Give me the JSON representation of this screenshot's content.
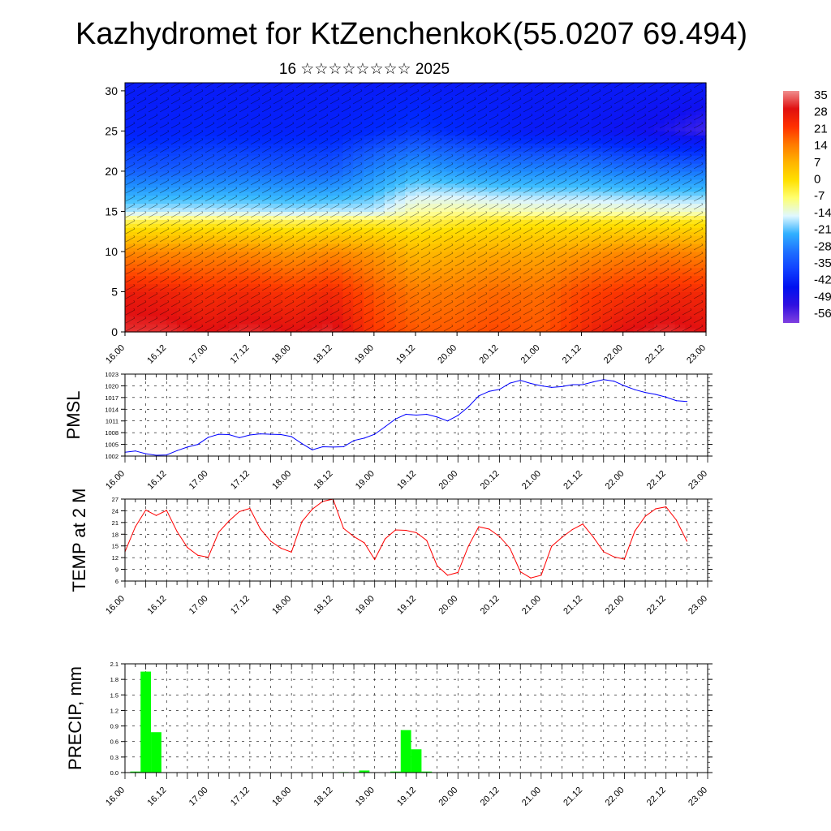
{
  "title": "Kazhydromet for KtZenchenkoK(55.0207 69.494)",
  "subtitle": "16 ☆☆☆☆☆☆☆☆ 2025",
  "time_labels": [
    "16.00",
    "16.12",
    "17.00",
    "17.12",
    "18.00",
    "18.12",
    "19.00",
    "19.12",
    "20.00",
    "20.12",
    "21.00",
    "21.12",
    "22.00",
    "22.12",
    "23.00"
  ],
  "chart_data": [
    {
      "type": "heatmap",
      "title": "Kazhydromet for KtZenchenkoK(55.0207 69.494)",
      "subtitle": "16 ☆☆☆☆☆☆☆☆ 2025",
      "x_ticks": [
        "16.00",
        "16.12",
        "17.00",
        "17.12",
        "18.00",
        "18.12",
        "19.00",
        "19.12",
        "20.00",
        "20.12",
        "21.00",
        "21.12",
        "22.00",
        "22.12",
        "23.00"
      ],
      "y_ticks": [
        0,
        5,
        10,
        15,
        20,
        25,
        30
      ],
      "ylim": [
        0,
        31
      ],
      "xlim": [
        0,
        14
      ],
      "colorbar_labels": [
        "35",
        "28",
        "21",
        "14",
        "7",
        "0",
        "-7",
        "-14",
        "-21",
        "-28",
        "-35",
        "-42",
        "-49",
        "-56"
      ],
      "colorbar_colors": [
        "#f08e8e",
        "#e01010",
        "#ff3000",
        "#ff7a00",
        "#ffb400",
        "#ffe000",
        "#ffff70",
        "#e0f8ff",
        "#30b0ff",
        "#1e70ff",
        "#1040ff",
        "#0010f0",
        "#3010e0",
        "#8040e0"
      ],
      "temperature_profiles": [
        {
          "x": 0,
          "levels": [
            [
              0,
              30
            ],
            [
              5,
              26
            ],
            [
              10,
              12
            ],
            [
              14,
              -5
            ],
            [
              15,
              -16
            ],
            [
              20,
              -34
            ],
            [
              25,
              -44
            ],
            [
              31,
              -46
            ]
          ]
        },
        {
          "x": 1,
          "levels": [
            [
              0,
              30
            ],
            [
              5,
              25
            ],
            [
              10,
              12
            ],
            [
              14,
              -4
            ],
            [
              15,
              -15
            ],
            [
              20,
              -34
            ],
            [
              25,
              -44
            ],
            [
              31,
              -46
            ]
          ]
        },
        {
          "x": 2,
          "levels": [
            [
              0,
              28
            ],
            [
              5,
              23
            ],
            [
              10,
              12
            ],
            [
              14,
              -4
            ],
            [
              15,
              -15
            ],
            [
              20,
              -33
            ],
            [
              25,
              -43
            ],
            [
              31,
              -46
            ]
          ]
        },
        {
          "x": 3,
          "levels": [
            [
              0,
              30
            ],
            [
              5,
              24
            ],
            [
              10,
              12
            ],
            [
              14,
              -4
            ],
            [
              15,
              -15
            ],
            [
              20,
              -33
            ],
            [
              25,
              -44
            ],
            [
              31,
              -46
            ]
          ]
        },
        {
          "x": 4,
          "levels": [
            [
              0,
              28
            ],
            [
              5,
              22
            ],
            [
              10,
              10
            ],
            [
              14,
              -5
            ],
            [
              15,
              -16
            ],
            [
              20,
              -34
            ],
            [
              25,
              -44
            ],
            [
              31,
              -46
            ]
          ]
        },
        {
          "x": 5,
          "levels": [
            [
              0,
              30
            ],
            [
              5,
              24
            ],
            [
              10,
              12
            ],
            [
              14,
              -4
            ],
            [
              15,
              -15
            ],
            [
              20,
              -34
            ],
            [
              25,
              -44
            ],
            [
              31,
              -46
            ]
          ]
        },
        {
          "x": 6,
          "levels": [
            [
              0,
              22
            ],
            [
              5,
              18
            ],
            [
              10,
              10
            ],
            [
              14,
              -4
            ],
            [
              15,
              -15
            ],
            [
              20,
              -28
            ],
            [
              25,
              -42
            ],
            [
              31,
              -46
            ]
          ]
        },
        {
          "x": 7,
          "levels": [
            [
              0,
              18
            ],
            [
              5,
              14
            ],
            [
              10,
              6
            ],
            [
              14,
              -4
            ],
            [
              15,
              -8
            ],
            [
              20,
              -24
            ],
            [
              25,
              -40
            ],
            [
              31,
              -46
            ]
          ]
        },
        {
          "x": 8,
          "levels": [
            [
              0,
              18
            ],
            [
              5,
              14
            ],
            [
              10,
              7
            ],
            [
              14,
              -3
            ],
            [
              15,
              -7
            ],
            [
              20,
              -26
            ],
            [
              25,
              -42
            ],
            [
              31,
              -46
            ]
          ]
        },
        {
          "x": 9,
          "levels": [
            [
              0,
              20
            ],
            [
              5,
              16
            ],
            [
              10,
              8
            ],
            [
              14,
              -2
            ],
            [
              15,
              -8
            ],
            [
              20,
              -28
            ],
            [
              25,
              -44
            ],
            [
              31,
              -46
            ]
          ]
        },
        {
          "x": 10,
          "levels": [
            [
              0,
              18
            ],
            [
              5,
              15
            ],
            [
              10,
              8
            ],
            [
              14,
              -2
            ],
            [
              15,
              -9
            ],
            [
              20,
              -28
            ],
            [
              25,
              -46
            ],
            [
              31,
              -46
            ]
          ]
        },
        {
          "x": 11,
          "levels": [
            [
              0,
              24
            ],
            [
              5,
              20
            ],
            [
              10,
              10
            ],
            [
              14,
              -2
            ],
            [
              15,
              -9
            ],
            [
              20,
              -28
            ],
            [
              25,
              -46
            ],
            [
              31,
              -46
            ]
          ]
        },
        {
          "x": 12,
          "levels": [
            [
              0,
              28
            ],
            [
              5,
              22
            ],
            [
              10,
              12
            ],
            [
              14,
              -2
            ],
            [
              15,
              -9
            ],
            [
              20,
              -30
            ],
            [
              25,
              -48
            ],
            [
              31,
              -46
            ]
          ]
        },
        {
          "x": 13,
          "levels": [
            [
              0,
              30
            ],
            [
              5,
              24
            ],
            [
              10,
              13
            ],
            [
              14,
              -2
            ],
            [
              15,
              -10
            ],
            [
              20,
              -31
            ],
            [
              25,
              -50
            ],
            [
              31,
              -46
            ]
          ]
        },
        {
          "x": 14,
          "levels": [
            [
              0,
              28
            ],
            [
              5,
              24
            ],
            [
              10,
              12
            ],
            [
              14,
              -2
            ],
            [
              15,
              -10
            ],
            [
              20,
              -31
            ],
            [
              25,
              -52
            ],
            [
              31,
              -46
            ]
          ]
        }
      ]
    },
    {
      "type": "line",
      "ylabel": "PMSL",
      "x_ticks": [
        "16.00",
        "16.12",
        "17.00",
        "17.12",
        "18.00",
        "18.12",
        "19.00",
        "19.12",
        "20.00",
        "20.12",
        "21.00",
        "21.12",
        "22.00",
        "22.12",
        "23.00"
      ],
      "y_ticks": [
        1002,
        1005,
        1008,
        1011,
        1014,
        1017,
        1020,
        1023
      ],
      "ylim": [
        1002,
        1023
      ],
      "xlim": [
        0,
        14
      ],
      "color": "#0000ff",
      "grid": true,
      "x": [
        0,
        0.25,
        0.5,
        0.75,
        1,
        1.25,
        1.5,
        1.75,
        2,
        2.25,
        2.5,
        2.75,
        3,
        3.25,
        3.5,
        3.75,
        4,
        4.25,
        4.5,
        4.75,
        5,
        5.25,
        5.5,
        5.75,
        6,
        6.25,
        6.5,
        6.75,
        7,
        7.25,
        7.5,
        7.75,
        8,
        8.25,
        8.5,
        8.75,
        9,
        9.25,
        9.5,
        9.75,
        10,
        10.25,
        10.5,
        10.75,
        11,
        11.25,
        11.5,
        11.75,
        12,
        12.25,
        12.5,
        12.75,
        13,
        13.25,
        13.5
      ],
      "values": [
        1003.0,
        1003.3,
        1002.6,
        1002.2,
        1002.3,
        1003.4,
        1004.3,
        1005.0,
        1006.8,
        1007.6,
        1007.5,
        1006.7,
        1007.4,
        1007.7,
        1007.6,
        1007.5,
        1007.0,
        1005.2,
        1003.6,
        1004.4,
        1004.3,
        1004.4,
        1006.0,
        1006.6,
        1007.6,
        1009.5,
        1011.5,
        1012.7,
        1012.5,
        1012.7,
        1012.0,
        1011.0,
        1012.4,
        1014.6,
        1017.4,
        1018.6,
        1019.1,
        1020.7,
        1021.4,
        1020.6,
        1020.0,
        1019.6,
        1019.8,
        1020.3,
        1020.3,
        1021.0,
        1021.6,
        1021.2,
        1020.0,
        1019.0,
        1018.3,
        1017.8,
        1017.1,
        1016.2,
        1016.0
      ]
    },
    {
      "type": "line",
      "ylabel": "TEMP at 2 M",
      "x_ticks": [
        "16.00",
        "16.12",
        "17.00",
        "17.12",
        "18.00",
        "18.12",
        "19.00",
        "19.12",
        "20.00",
        "20.12",
        "21.00",
        "21.12",
        "22.00",
        "22.12",
        "23.00"
      ],
      "y_ticks": [
        6,
        9,
        12,
        15,
        18,
        21,
        24,
        27
      ],
      "ylim": [
        6,
        27
      ],
      "xlim": [
        0,
        14
      ],
      "color": "#ff0000",
      "grid": true,
      "x": [
        0,
        0.25,
        0.5,
        0.75,
        1,
        1.25,
        1.5,
        1.75,
        2,
        2.25,
        2.5,
        2.75,
        3,
        3.25,
        3.5,
        3.75,
        4,
        4.25,
        4.5,
        4.75,
        5,
        5.25,
        5.5,
        5.75,
        6,
        6.25,
        6.5,
        6.75,
        7,
        7.25,
        7.5,
        7.75,
        8,
        8.25,
        8.5,
        8.75,
        9,
        9.25,
        9.5,
        9.75,
        10,
        10.25,
        10.5,
        10.75,
        11,
        11.25,
        11.5,
        11.75,
        12,
        12.25,
        12.5,
        12.75,
        13,
        13.25,
        13.5
      ],
      "values": [
        13.5,
        19.9,
        24.2,
        22.8,
        24.1,
        18.7,
        14.6,
        12.6,
        12.1,
        18.5,
        21.4,
        23.8,
        24.6,
        19.4,
        16.2,
        14.4,
        13.4,
        21.2,
        24.4,
        26.4,
        27.0,
        19.5,
        17.4,
        15.8,
        11.5,
        16.8,
        19.1,
        19.0,
        18.4,
        16.4,
        9.9,
        7.5,
        8.2,
        14.9,
        19.9,
        19.3,
        17.4,
        14.4,
        8.4,
        6.8,
        7.5,
        14.9,
        17.2,
        19.2,
        20.6,
        17.3,
        13.5,
        12.2,
        11.6,
        18.8,
        22.6,
        24.5,
        25.0,
        21.6,
        16.2
      ]
    },
    {
      "type": "bar",
      "ylabel": "PRECIP, mm",
      "x_ticks": [
        "16.00",
        "16.12",
        "17.00",
        "17.12",
        "18.00",
        "18.12",
        "19.00",
        "19.12",
        "20.00",
        "20.12",
        "21.00",
        "21.12",
        "22.00",
        "22.12",
        "23.00"
      ],
      "y_ticks": [
        0.0,
        0.3,
        0.6,
        0.9,
        1.2,
        1.5,
        1.8,
        2.1
      ],
      "ylim": [
        0,
        2.1
      ],
      "xlim": [
        0,
        14
      ],
      "color": "#00ff00",
      "grid": true,
      "x": [
        0.25,
        0.5,
        0.75,
        5.25,
        5.75,
        6.5,
        6.75,
        7.0,
        7.25
      ],
      "values": [
        0.02,
        1.95,
        0.78,
        0.01,
        0.04,
        0.02,
        0.82,
        0.45,
        0.02
      ]
    }
  ]
}
